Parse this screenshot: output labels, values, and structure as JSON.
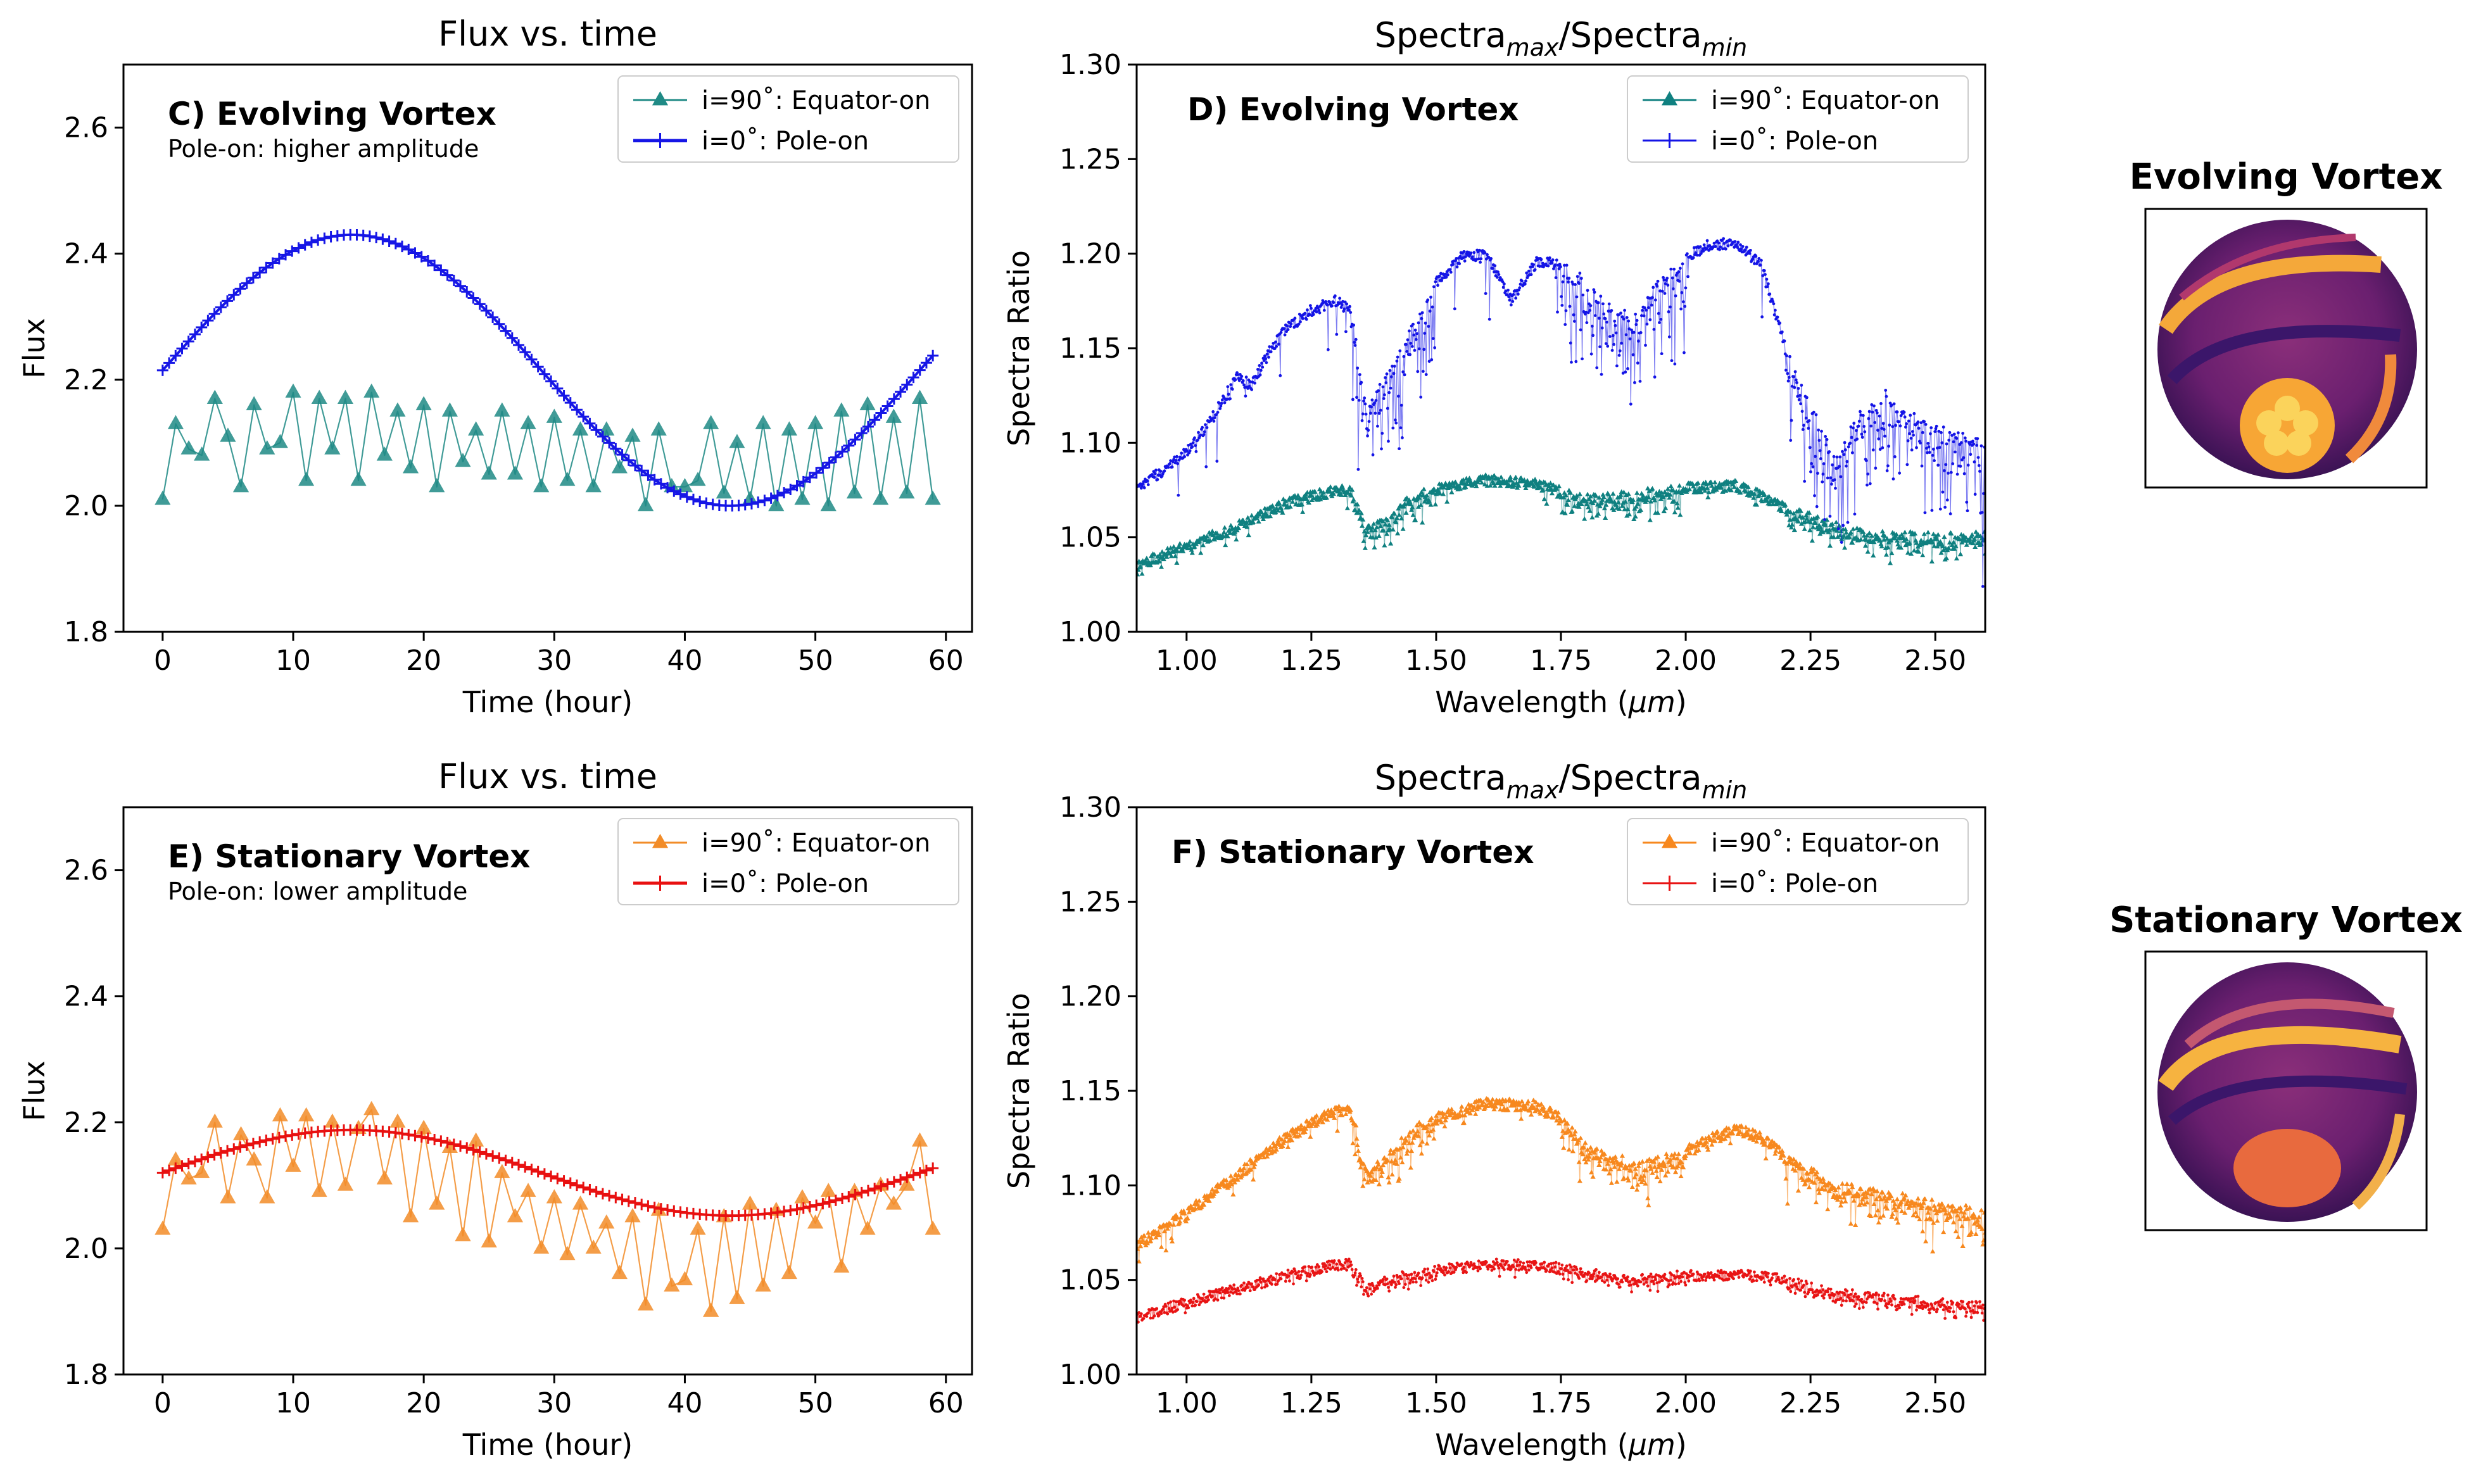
{
  "chart_data": [
    {
      "type": "line",
      "title": "Flux vs. time",
      "xlabel": "Time (hour)",
      "ylabel": "Flux",
      "annotation": "C) Evolving Vortex",
      "subannotation": "Pole-on: higher amplitude",
      "xlim": [
        -3,
        62
      ],
      "ylim": [
        1.8,
        2.7
      ],
      "xticks": [
        0,
        10,
        20,
        30,
        40,
        50,
        60
      ],
      "yticks": [
        1.8,
        2.0,
        2.2,
        2.4,
        2.6
      ],
      "ytick_decimals": 1,
      "legend": "top-right",
      "series": [
        {
          "name": "i=90$^\\circ$: Equator-on",
          "label": "i=90˚: Equator-on",
          "color": "#1f8a85",
          "marker": "triangle",
          "linewidth": 2.2,
          "x": [
            0,
            1,
            2,
            3,
            4,
            5,
            6,
            7,
            8,
            9,
            10,
            11,
            12,
            13,
            14,
            15,
            16,
            17,
            18,
            19,
            20,
            21,
            22,
            23,
            24,
            25,
            26,
            27,
            28,
            29,
            30,
            31,
            32,
            33,
            34,
            35,
            36,
            37,
            38,
            39,
            40,
            41,
            42,
            43,
            44,
            45,
            46,
            47,
            48,
            49,
            50,
            51,
            52,
            53,
            54,
            55,
            56,
            57,
            58,
            59
          ],
          "y": [
            2.01,
            2.13,
            2.09,
            2.08,
            2.17,
            2.11,
            2.03,
            2.16,
            2.09,
            2.1,
            2.18,
            2.04,
            2.17,
            2.09,
            2.17,
            2.04,
            2.18,
            2.08,
            2.15,
            2.06,
            2.16,
            2.03,
            2.15,
            2.07,
            2.12,
            2.05,
            2.15,
            2.05,
            2.13,
            2.03,
            2.14,
            2.04,
            2.12,
            2.03,
            2.12,
            2.06,
            2.11,
            2.0,
            2.12,
            2.03,
            2.03,
            2.04,
            2.13,
            2.02,
            2.1,
            2.01,
            2.13,
            2.0,
            2.12,
            2.01,
            2.13,
            2.0,
            2.15,
            2.02,
            2.16,
            2.01,
            2.14,
            2.02,
            2.17,
            2.01
          ]
        },
        {
          "name": "i=0$^\\circ$: Pole-on",
          "label": "i=0˚: Pole-on",
          "color": "#1616e6",
          "marker": "plus",
          "linewidth": 4,
          "curve": {
            "mean": 2.215,
            "amplitude": 0.215,
            "period": 58,
            "phase": 0,
            "n": 120,
            "start": 0,
            "end": 59
          }
        }
      ]
    },
    {
      "type": "scatter",
      "title": "Spectra$_{max}$/Spectra$_{min}$",
      "title_main": "Spectra",
      "title_sub1": "max",
      "title_mid": "/Spectra",
      "title_sub2": "min",
      "xlabel": "Wavelength (μm)",
      "xlabel_main": "Wavelength (",
      "xlabel_unit": "μm",
      "xlabel_close": ")",
      "ylabel": "Spectra Ratio",
      "annotation": "D) Evolving Vortex",
      "xlim": [
        0.9,
        2.6
      ],
      "ylim": [
        1.0,
        1.3
      ],
      "xticks": [
        1.0,
        1.25,
        1.5,
        1.75,
        2.0,
        2.25,
        2.5
      ],
      "yticks": [
        1.0,
        1.05,
        1.1,
        1.15,
        1.2,
        1.25,
        1.3
      ],
      "xtick_decimals": 2,
      "ytick_decimals": 2,
      "legend": "top-right",
      "series": [
        {
          "name": "i=90$^\\circ$: Equator-on",
          "label": "i=90˚: Equator-on",
          "color": "#0f8080",
          "marker": "triangle",
          "envelope": [
            [
              0.9,
              1.035
            ],
            [
              1.0,
              1.045
            ],
            [
              1.1,
              1.055
            ],
            [
              1.2,
              1.068
            ],
            [
              1.3,
              1.075
            ],
            [
              1.33,
              1.075
            ],
            [
              1.36,
              1.055
            ],
            [
              1.4,
              1.058
            ],
            [
              1.45,
              1.07
            ],
            [
              1.5,
              1.075
            ],
            [
              1.6,
              1.08
            ],
            [
              1.7,
              1.078
            ],
            [
              1.8,
              1.07
            ],
            [
              1.9,
              1.072
            ],
            [
              2.0,
              1.076
            ],
            [
              2.1,
              1.077
            ],
            [
              2.15,
              1.072
            ],
            [
              2.2,
              1.065
            ],
            [
              2.3,
              1.055
            ],
            [
              2.4,
              1.05
            ],
            [
              2.5,
              1.05
            ],
            [
              2.6,
              1.05
            ]
          ],
          "scatter_scale": 0.012
        },
        {
          "name": "i=0$^\\circ$: Pole-on",
          "label": "i=0˚: Pole-on",
          "color": "#1414e6",
          "marker": "plus",
          "envelope": [
            [
              0.9,
              1.075
            ],
            [
              1.0,
              1.095
            ],
            [
              1.05,
              1.112
            ],
            [
              1.1,
              1.135
            ],
            [
              1.13,
              1.13
            ],
            [
              1.17,
              1.15
            ],
            [
              1.2,
              1.16
            ],
            [
              1.25,
              1.17
            ],
            [
              1.3,
              1.175
            ],
            [
              1.33,
              1.17
            ],
            [
              1.36,
              1.12
            ],
            [
              1.4,
              1.135
            ],
            [
              1.45,
              1.16
            ],
            [
              1.5,
              1.185
            ],
            [
              1.55,
              1.198
            ],
            [
              1.6,
              1.2
            ],
            [
              1.65,
              1.175
            ],
            [
              1.7,
              1.195
            ],
            [
              1.75,
              1.195
            ],
            [
              1.8,
              1.185
            ],
            [
              1.85,
              1.17
            ],
            [
              1.9,
              1.168
            ],
            [
              1.95,
              1.185
            ],
            [
              2.0,
              1.198
            ],
            [
              2.05,
              1.205
            ],
            [
              2.1,
              1.205
            ],
            [
              2.15,
              1.195
            ],
            [
              2.2,
              1.15
            ],
            [
              2.25,
              1.12
            ],
            [
              2.3,
              1.09
            ],
            [
              2.35,
              1.115
            ],
            [
              2.4,
              1.125
            ],
            [
              2.45,
              1.115
            ],
            [
              2.5,
              1.11
            ],
            [
              2.55,
              1.105
            ],
            [
              2.6,
              1.1
            ]
          ],
          "scatter_scale": 0.05
        }
      ]
    },
    {
      "type": "line",
      "title": "Flux vs. time",
      "xlabel": "Time (hour)",
      "ylabel": "Flux",
      "annotation": "E) Stationary Vortex",
      "subannotation": "Pole-on: lower amplitude",
      "xlim": [
        -3,
        62
      ],
      "ylim": [
        1.8,
        2.7
      ],
      "xticks": [
        0,
        10,
        20,
        30,
        40,
        50,
        60
      ],
      "yticks": [
        1.8,
        2.0,
        2.2,
        2.4,
        2.6
      ],
      "ytick_decimals": 1,
      "legend": "top-right",
      "series": [
        {
          "name": "i=90$^\\circ$: Equator-on",
          "label": "i=90˚: Equator-on",
          "color": "#f28c28",
          "marker": "triangle",
          "linewidth": 2.2,
          "x": [
            0,
            1,
            2,
            3,
            4,
            5,
            6,
            7,
            8,
            9,
            10,
            11,
            12,
            13,
            14,
            15,
            16,
            17,
            18,
            19,
            20,
            21,
            22,
            23,
            24,
            25,
            26,
            27,
            28,
            29,
            30,
            31,
            32,
            33,
            34,
            35,
            36,
            37,
            38,
            39,
            40,
            41,
            42,
            43,
            44,
            45,
            46,
            47,
            48,
            49,
            50,
            51,
            52,
            53,
            54,
            55,
            56,
            57,
            58,
            59
          ],
          "y": [
            2.03,
            2.14,
            2.11,
            2.12,
            2.2,
            2.08,
            2.18,
            2.14,
            2.08,
            2.21,
            2.13,
            2.21,
            2.09,
            2.2,
            2.1,
            2.19,
            2.22,
            2.11,
            2.2,
            2.05,
            2.19,
            2.07,
            2.16,
            2.02,
            2.17,
            2.01,
            2.12,
            2.05,
            2.09,
            2.0,
            2.08,
            1.99,
            2.07,
            2.0,
            2.04,
            1.96,
            2.05,
            1.91,
            2.06,
            1.94,
            1.95,
            2.03,
            1.9,
            2.05,
            1.92,
            2.07,
            1.94,
            2.06,
            1.96,
            2.08,
            2.04,
            2.09,
            1.97,
            2.09,
            2.03,
            2.1,
            2.07,
            2.1,
            2.17,
            2.03
          ]
        },
        {
          "name": "i=0$^\\circ$: Pole-on",
          "label": "i=0˚: Pole-on",
          "color": "#e81010",
          "marker": "plus",
          "linewidth": 4,
          "curve": {
            "mean": 2.12,
            "amplitude": 0.068,
            "period": 58,
            "phase": 0,
            "n": 120,
            "start": 0,
            "end": 59
          }
        }
      ]
    },
    {
      "type": "scatter",
      "title": "Spectra$_{max}$/Spectra$_{min}$",
      "title_main": "Spectra",
      "title_sub1": "max",
      "title_mid": "/Spectra",
      "title_sub2": "min",
      "xlabel": "Wavelength (μm)",
      "xlabel_main": "Wavelength (",
      "xlabel_unit": "μm",
      "xlabel_close": ")",
      "ylabel": "Spectra Ratio",
      "annotation": "F) Stationary Vortex",
      "xlim": [
        0.9,
        2.6
      ],
      "ylim": [
        1.0,
        1.3
      ],
      "xticks": [
        1.0,
        1.25,
        1.5,
        1.75,
        2.0,
        2.25,
        2.5
      ],
      "yticks": [
        1.0,
        1.05,
        1.1,
        1.15,
        1.2,
        1.25,
        1.3
      ],
      "xtick_decimals": 2,
      "ytick_decimals": 2,
      "legend": "top-right",
      "series": [
        {
          "name": "i=90$^\\circ$: Equator-on",
          "label": "i=90˚: Equator-on",
          "color": "#f7881e",
          "marker": "triangle",
          "envelope": [
            [
              0.9,
              1.068
            ],
            [
              1.0,
              1.085
            ],
            [
              1.1,
              1.105
            ],
            [
              1.2,
              1.125
            ],
            [
              1.3,
              1.14
            ],
            [
              1.33,
              1.14
            ],
            [
              1.36,
              1.105
            ],
            [
              1.4,
              1.115
            ],
            [
              1.45,
              1.128
            ],
            [
              1.5,
              1.135
            ],
            [
              1.6,
              1.143
            ],
            [
              1.7,
              1.142
            ],
            [
              1.75,
              1.135
            ],
            [
              1.8,
              1.12
            ],
            [
              1.9,
              1.11
            ],
            [
              2.0,
              1.118
            ],
            [
              2.1,
              1.13
            ],
            [
              2.15,
              1.125
            ],
            [
              2.2,
              1.115
            ],
            [
              2.3,
              1.1
            ],
            [
              2.4,
              1.095
            ],
            [
              2.5,
              1.09
            ],
            [
              2.6,
              1.085
            ]
          ],
          "scatter_scale": 0.018
        },
        {
          "name": "i=0$^\\circ$: Pole-on",
          "label": "i=0˚: Pole-on",
          "color": "#e81414",
          "marker": "plus",
          "envelope": [
            [
              0.9,
              1.03
            ],
            [
              1.0,
              1.038
            ],
            [
              1.1,
              1.045
            ],
            [
              1.2,
              1.052
            ],
            [
              1.3,
              1.058
            ],
            [
              1.33,
              1.058
            ],
            [
              1.36,
              1.045
            ],
            [
              1.4,
              1.05
            ],
            [
              1.5,
              1.055
            ],
            [
              1.6,
              1.058
            ],
            [
              1.7,
              1.058
            ],
            [
              1.8,
              1.054
            ],
            [
              1.9,
              1.05
            ],
            [
              2.0,
              1.052
            ],
            [
              2.1,
              1.053
            ],
            [
              2.2,
              1.05
            ],
            [
              2.3,
              1.043
            ],
            [
              2.4,
              1.04
            ],
            [
              2.5,
              1.038
            ],
            [
              2.6,
              1.036
            ]
          ],
          "scatter_scale": 0.006
        }
      ]
    }
  ],
  "thumbnails": [
    {
      "title": "Evolving Vortex",
      "vortex_color": "#f7a635",
      "vortex_inner": "#fbd35b"
    },
    {
      "title": "Stationary Vortex",
      "vortex_color": "#e86a3e",
      "vortex_inner": "#e8703a"
    }
  ]
}
